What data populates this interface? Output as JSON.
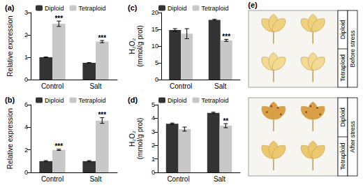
{
  "chart_data": [
    {
      "type": "bar",
      "title": "(a)",
      "y_label": "Relative expression",
      "categories": [
        "Control",
        "Salt"
      ],
      "series": [
        {
          "name": "Diploid",
          "color": "#333333",
          "values": [
            1.0,
            0.75
          ],
          "errors": [
            0.01,
            0.01
          ],
          "annotations": [
            null,
            null
          ]
        },
        {
          "name": "Tetraploid",
          "color": "#c8c8c8",
          "values": [
            2.5,
            1.7
          ],
          "errors": [
            0.12,
            0.05
          ],
          "annotations": [
            "***",
            "***"
          ]
        }
      ],
      "ylim": [
        0,
        3
      ],
      "yticks": [
        0,
        1,
        2,
        3
      ],
      "grid": false,
      "legend": "top-left"
    },
    {
      "type": "bar",
      "title": "(b)",
      "y_label": "Relative expression",
      "categories": [
        "Control",
        "Salt"
      ],
      "series": [
        {
          "name": "Diploid",
          "color": "#333333",
          "values": [
            1.0,
            1.0
          ],
          "errors": [
            0.05,
            0.05
          ],
          "annotations": [
            null,
            null
          ]
        },
        {
          "name": "Tetraploid",
          "color": "#c8c8c8",
          "values": [
            2.0,
            4.6
          ],
          "errors": [
            0.05,
            0.25
          ],
          "annotations": [
            "***",
            "***"
          ]
        }
      ],
      "ylim": [
        0,
        6
      ],
      "yticks": [
        0,
        2,
        4,
        6
      ],
      "grid": false,
      "legend": "top-left"
    },
    {
      "type": "bar",
      "title": "(c)",
      "y_label": "H₂O₂\n(mmol/g prot)",
      "categories": [
        "Control",
        "Salt"
      ],
      "series": [
        {
          "name": "Diploid",
          "color": "#333333",
          "values": [
            14.8,
            17.8
          ],
          "errors": [
            0.4,
            0.2
          ],
          "annotations": [
            null,
            null
          ]
        },
        {
          "name": "Tetraploid",
          "color": "#c8c8c8",
          "values": [
            13.7,
            11.7
          ],
          "errors": [
            1.5,
            0.3
          ],
          "annotations": [
            null,
            "***"
          ]
        }
      ],
      "ylim": [
        0,
        20
      ],
      "yticks": [
        0,
        5,
        10,
        15,
        20
      ],
      "grid": false,
      "legend": "top-left"
    },
    {
      "type": "bar",
      "title": "(d)",
      "y_label": "H₂O₂\n(mmol/g prot)",
      "categories": [
        "Control",
        "Salt"
      ],
      "series": [
        {
          "name": "Diploid",
          "color": "#333333",
          "values": [
            3.6,
            4.4
          ],
          "errors": [
            0.05,
            0.05
          ],
          "annotations": [
            null,
            null
          ]
        },
        {
          "name": "Tetraploid",
          "color": "#c8c8c8",
          "values": [
            3.2,
            3.45
          ],
          "errors": [
            0.15,
            0.15
          ],
          "annotations": [
            null,
            "**"
          ]
        }
      ],
      "ylim": [
        0,
        5
      ],
      "yticks": [
        0,
        1,
        2,
        3,
        4,
        5
      ],
      "grid": false,
      "legend": "top-left"
    }
  ],
  "photo_panel": {
    "label": "(e)",
    "groups": [
      {
        "label": "Before stress",
        "rows": [
          "Diploid",
          "Tetraploid"
        ]
      },
      {
        "label": "After stress",
        "rows": [
          "Diploid",
          "Tetraploid"
        ]
      }
    ]
  }
}
